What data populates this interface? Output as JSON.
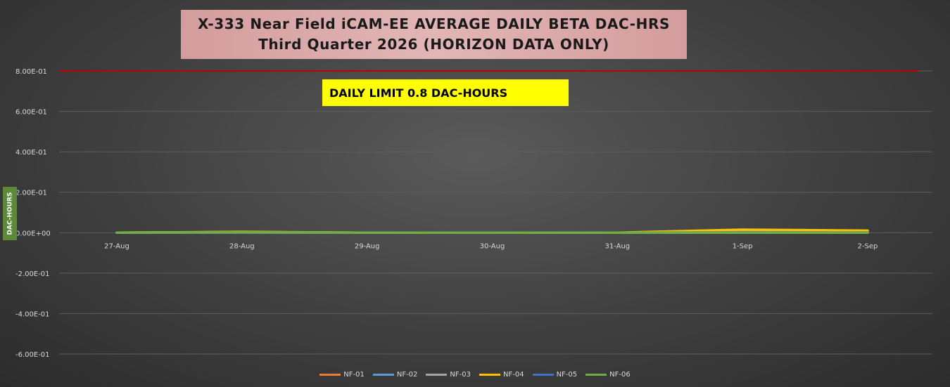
{
  "chart_data": {
    "type": "line",
    "title": [
      "X-333 Near Field iCAM-EE AVERAGE DAILY BETA DAC-HRS",
      "Third Quarter 2026 (HORIZON DATA ONLY)"
    ],
    "ylabel": "DAC-HOURS",
    "xlabel": "",
    "categories": [
      "27-Aug",
      "28-Aug",
      "29-Aug",
      "30-Aug",
      "31-Aug",
      "1-Sep",
      "2-Sep"
    ],
    "ylim": [
      -0.6,
      0.8
    ],
    "yticks": [
      0.8,
      0.6,
      0.4,
      0.2,
      0.0,
      -0.2,
      -0.4,
      -0.6
    ],
    "ytick_labels": [
      "8.00E-01",
      "6.00E-01",
      "4.00E-01",
      "2.00E-01",
      "0.00E+00",
      "-2.00E-01",
      "-4.00E-01",
      "-6.00E-01"
    ],
    "grid": true,
    "legend_position": "bottom",
    "limit_line": {
      "value": 0.8,
      "label": "DAILY LIMIT 0.8 DAC-HOURS",
      "color": "#c00000"
    },
    "series": [
      {
        "name": "NF-01",
        "color": "#ed7d31",
        "values": [
          0.0,
          0.003,
          0.0,
          0.0,
          0.0,
          0.005,
          0.004
        ]
      },
      {
        "name": "NF-02",
        "color": "#5b9bd5",
        "values": [
          0.0,
          0.002,
          0.0,
          0.0,
          0.0,
          0.003,
          0.002
        ]
      },
      {
        "name": "NF-03",
        "color": "#a5a5a5",
        "values": [
          0.0,
          0.001,
          0.0,
          0.0,
          0.0,
          0.002,
          0.001
        ]
      },
      {
        "name": "NF-04",
        "color": "#ffc000",
        "values": [
          0.0,
          0.004,
          0.0,
          0.0,
          0.0,
          0.015,
          0.01
        ]
      },
      {
        "name": "NF-05",
        "color": "#4472c4",
        "values": [
          0.0,
          0.001,
          0.0,
          0.0,
          0.0,
          0.002,
          0.001
        ]
      },
      {
        "name": "NF-06",
        "color": "#70ad47",
        "values": [
          0.0,
          0.002,
          0.0,
          0.0,
          0.0,
          0.0,
          0.0
        ]
      }
    ]
  }
}
